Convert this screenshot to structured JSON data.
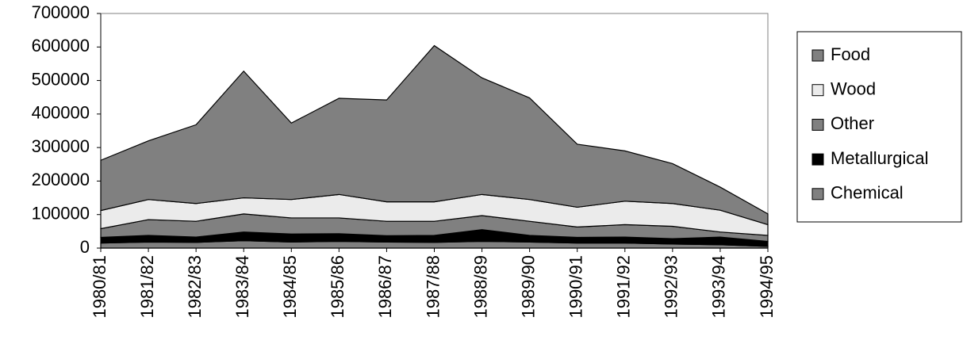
{
  "chart_data": {
    "type": "stacked-area",
    "categories": [
      "1980/81",
      "1981/82",
      "1982/83",
      "1983/84",
      "1984/85",
      "1985/86",
      "1986/87",
      "1987/88",
      "1988/89",
      "1989/90",
      "1990/91",
      "1991/92",
      "1992/93",
      "1993/94",
      "1994/95"
    ],
    "series": [
      {
        "name": "Chemical",
        "color": "#808080",
        "values": [
          15000,
          18000,
          17000,
          22000,
          18000,
          20000,
          18000,
          17000,
          20000,
          18000,
          15000,
          15000,
          12000,
          10000,
          5000
        ]
      },
      {
        "name": "Metallurgical",
        "color": "#000000",
        "values": [
          17000,
          20000,
          16000,
          26000,
          24000,
          23000,
          19000,
          21000,
          35000,
          20000,
          17000,
          18000,
          16000,
          23000,
          15000
        ]
      },
      {
        "name": "Other",
        "color": "#808080",
        "values": [
          26000,
          47000,
          47000,
          54000,
          48000,
          47000,
          43000,
          42000,
          42000,
          42000,
          31000,
          37000,
          37000,
          15000,
          18000
        ]
      },
      {
        "name": "Wood",
        "color": "#ebebeb",
        "values": [
          54000,
          60000,
          53000,
          48000,
          55000,
          70000,
          58000,
          58000,
          63000,
          65000,
          59000,
          70000,
          68000,
          65000,
          32000
        ]
      },
      {
        "name": "Food",
        "color": "#808080",
        "values": [
          150000,
          175000,
          235000,
          378000,
          228000,
          287000,
          304000,
          466000,
          348000,
          303000,
          188000,
          150000,
          119000,
          69000,
          32000
        ]
      }
    ],
    "ylim": [
      0,
      700000
    ],
    "yticks": [
      0,
      100000,
      200000,
      300000,
      400000,
      500000,
      600000,
      700000
    ],
    "grid": false,
    "legend": "right"
  }
}
